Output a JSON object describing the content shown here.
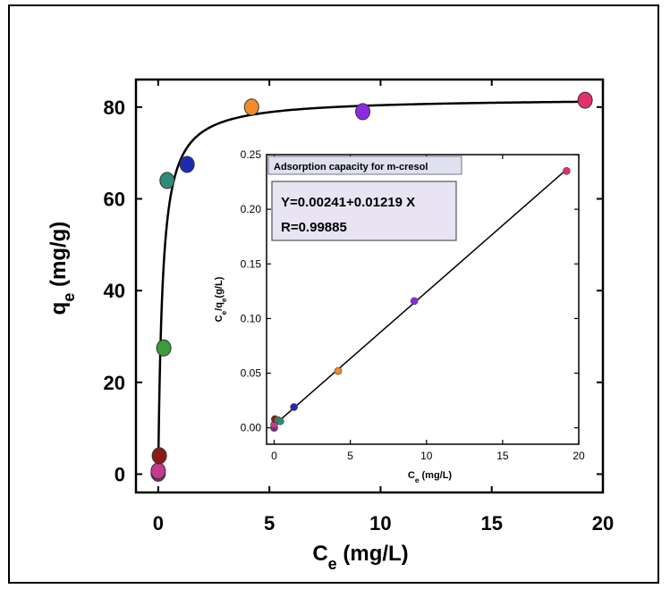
{
  "chart_data": [
    {
      "type": "scatter",
      "xlabel_main": "C",
      "xlabel_sub": "e",
      "xlabel_unit": " (mg/L)",
      "ylabel_main": "q",
      "ylabel_sub": "e",
      "ylabel_unit": " (mg/g)",
      "xlim": [
        -1,
        20
      ],
      "ylim": [
        -4,
        86
      ],
      "xticks": [
        0,
        5,
        10,
        15,
        20
      ],
      "yticks": [
        0,
        20,
        40,
        60,
        80
      ],
      "grid": false,
      "points": [
        {
          "x": 0.0,
          "y": 0.2,
          "color": "#7f2a85"
        },
        {
          "x": 0.0,
          "y": 0.7,
          "color": "#c23b8e"
        },
        {
          "x": 0.05,
          "y": 4.0,
          "color": "#8b1a1a"
        },
        {
          "x": 0.25,
          "y": 27.5,
          "color": "#3a9d3a"
        },
        {
          "x": 0.4,
          "y": 64.0,
          "color": "#2e8b7a"
        },
        {
          "x": 1.3,
          "y": 67.5,
          "color": "#1e2bb0"
        },
        {
          "x": 4.2,
          "y": 80.0,
          "color": "#f08c2a"
        },
        {
          "x": 9.2,
          "y": 79.0,
          "color": "#8a2be2"
        },
        {
          "x": 19.2,
          "y": 81.5,
          "color": "#e0306e"
        }
      ],
      "fit_curve": {
        "model": "langmuir",
        "qmax": 82.0,
        "KL": 5.06
      }
    },
    {
      "type": "scatter",
      "title": "Adsorption capacity for m-cresol",
      "annotation_lines": [
        "Y=0.00241+0.01219 X",
        "R=0.99885"
      ],
      "xlabel_main": "C",
      "xlabel_sub": "e",
      "xlabel_unit": " (mg/L)",
      "ylabel_main": "C",
      "ylabel_sub": "e",
      "ylabel_mid": "/q",
      "ylabel_sub2": "e",
      "ylabel_unit": "(g/L)",
      "xlim": [
        -0.5,
        20
      ],
      "ylim": [
        -0.015,
        0.25
      ],
      "xticks": [
        0,
        5,
        10,
        15,
        20
      ],
      "xticklabels": [
        "0",
        "5",
        "10",
        "15",
        "20"
      ],
      "yticks": [
        0.0,
        0.05,
        0.1,
        0.15,
        0.2,
        0.25
      ],
      "yticklabels": [
        "0.00",
        "0.05",
        "0.10",
        "0.15",
        "0.20",
        "0.25"
      ],
      "grid": false,
      "points": [
        {
          "x": 0.0,
          "y": 0.0,
          "color": "#7f2a85"
        },
        {
          "x": 0.0,
          "y": 0.003,
          "color": "#c23b8e"
        },
        {
          "x": 0.05,
          "y": 0.008,
          "color": "#8b1a1a"
        },
        {
          "x": 0.25,
          "y": 0.007,
          "color": "#3a9d3a"
        },
        {
          "x": 0.4,
          "y": 0.006,
          "color": "#2e8b7a"
        },
        {
          "x": 1.3,
          "y": 0.019,
          "color": "#1e2bb0"
        },
        {
          "x": 4.2,
          "y": 0.052,
          "color": "#f08c2a"
        },
        {
          "x": 9.2,
          "y": 0.116,
          "color": "#8a2be2"
        },
        {
          "x": 19.2,
          "y": 0.235,
          "color": "#e0306e"
        }
      ],
      "fit_line": {
        "intercept": 0.00241,
        "slope": 0.01219,
        "x_range": [
          0,
          19.2
        ]
      }
    }
  ]
}
